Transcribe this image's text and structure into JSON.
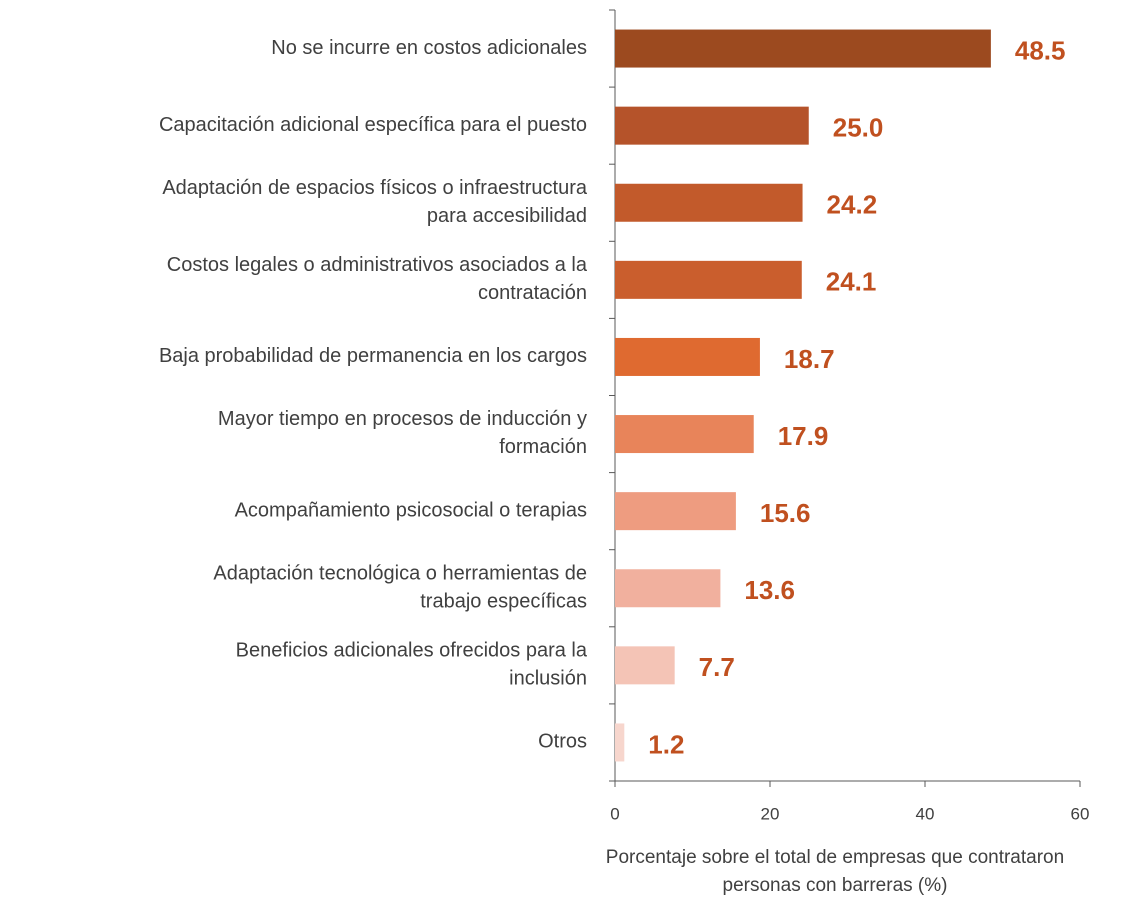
{
  "chart_data": {
    "type": "bar",
    "orientation": "horizontal",
    "categories": [
      "No se incurre en costos adicionales",
      "Capacitación adicional específica para el puesto",
      "Adaptación de espacios físicos o infraestructura\npara accesibilidad",
      "Costos legales o administrativos asociados a la\ncontratación",
      "Baja probabilidad de permanencia en los cargos",
      "Mayor tiempo en procesos de inducción y\nformación",
      "Acompañamiento psicosocial o terapias",
      "Adaptación tecnológica o herramientas de\ntrabajo específicas",
      "Beneficios adicionales ofrecidos para la\ninclusión",
      "Otros"
    ],
    "values": [
      48.5,
      25.0,
      24.2,
      24.1,
      18.7,
      17.9,
      15.6,
      13.6,
      7.7,
      1.2
    ],
    "value_labels": [
      "48.5",
      "25.0",
      "24.2",
      "24.1",
      "18.7",
      "17.9",
      "15.6",
      "13.6",
      "7.7",
      "1.2"
    ],
    "colors": [
      "#9c4a1f",
      "#b5532a",
      "#c25a2b",
      "#ca5e2d",
      "#df6a30",
      "#e8845a",
      "#ee9c80",
      "#f1b09e",
      "#f4c4b6",
      "#f7d6cd"
    ],
    "xlabel": "Porcentaje sobre el total de empresas que contrataron\npersonas con barreras (%)",
    "xlim": [
      0,
      60
    ],
    "xticks": [
      0,
      20,
      40,
      60
    ],
    "grid": false
  }
}
